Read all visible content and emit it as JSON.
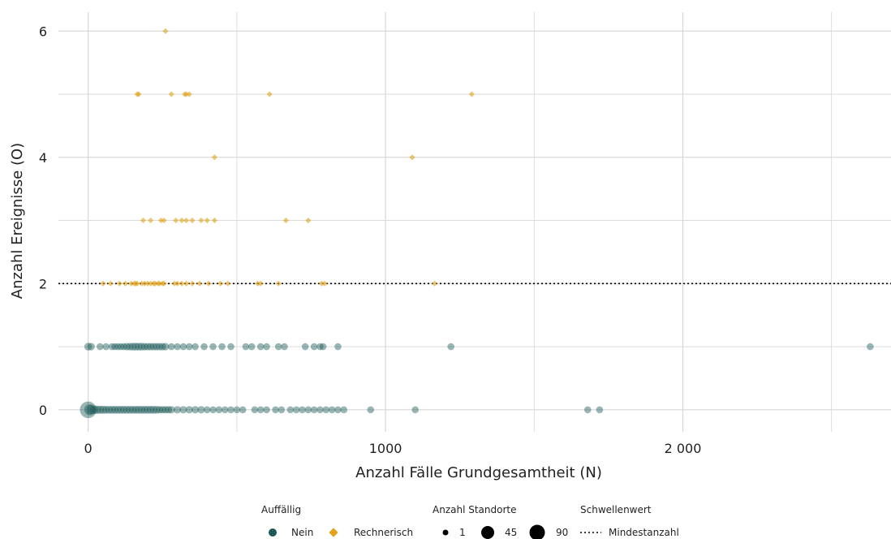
{
  "colors": {
    "nein": "#1d5a58",
    "rechnerisch": "#e0a21a",
    "grid": "#d6d6d6",
    "threshold": "#000000"
  },
  "chart_data": {
    "type": "scatter",
    "xlabel": "Anzahl Fälle Grundgesamtheit (N)",
    "ylabel": "Anzahl Ereignisse (O)",
    "xlim": [
      -100,
      2700
    ],
    "ylim": [
      -0.35,
      6.3
    ],
    "x_ticks": [
      0,
      1000,
      2000
    ],
    "x_tick_labels": [
      "0",
      "1000",
      "2 000"
    ],
    "y_ticks": [
      0,
      2,
      4,
      6
    ],
    "y_tick_labels": [
      "0",
      "2",
      "4",
      "6"
    ],
    "grid": true,
    "threshold": {
      "y": 2,
      "label": "Mindestanzahl"
    },
    "series": [
      {
        "name": "Nein",
        "marker": "circle",
        "points": [
          [
            0,
            0,
            90
          ],
          [
            5,
            0,
            20
          ],
          [
            10,
            0,
            10
          ],
          [
            20,
            0,
            6
          ],
          [
            30,
            0,
            5
          ],
          [
            40,
            0,
            4
          ],
          [
            50,
            0,
            4
          ],
          [
            60,
            0,
            3
          ],
          [
            70,
            0,
            3
          ],
          [
            80,
            0,
            3
          ],
          [
            90,
            0,
            3
          ],
          [
            100,
            0,
            3
          ],
          [
            110,
            0,
            3
          ],
          [
            120,
            0,
            3
          ],
          [
            130,
            0,
            3
          ],
          [
            140,
            0,
            3
          ],
          [
            150,
            0,
            3
          ],
          [
            160,
            0,
            3
          ],
          [
            170,
            0,
            3
          ],
          [
            180,
            0,
            3
          ],
          [
            190,
            0,
            3
          ],
          [
            200,
            0,
            3
          ],
          [
            210,
            0,
            3
          ],
          [
            220,
            0,
            3
          ],
          [
            230,
            0,
            3
          ],
          [
            240,
            0,
            2
          ],
          [
            250,
            0,
            2
          ],
          [
            260,
            0,
            2
          ],
          [
            270,
            0,
            2
          ],
          [
            280,
            0,
            2
          ],
          [
            300,
            0,
            2
          ],
          [
            320,
            0,
            2
          ],
          [
            340,
            0,
            2
          ],
          [
            360,
            0,
            2
          ],
          [
            380,
            0,
            2
          ],
          [
            400,
            0,
            1
          ],
          [
            420,
            0,
            1
          ],
          [
            440,
            0,
            1
          ],
          [
            460,
            0,
            1
          ],
          [
            480,
            0,
            1
          ],
          [
            500,
            0,
            1
          ],
          [
            520,
            0,
            1
          ],
          [
            560,
            0,
            1
          ],
          [
            580,
            0,
            1
          ],
          [
            600,
            0,
            1
          ],
          [
            630,
            0,
            1
          ],
          [
            650,
            0,
            1
          ],
          [
            680,
            0,
            1
          ],
          [
            700,
            0,
            1
          ],
          [
            720,
            0,
            1
          ],
          [
            740,
            0,
            1
          ],
          [
            760,
            0,
            1
          ],
          [
            780,
            0,
            1
          ],
          [
            800,
            0,
            1
          ],
          [
            820,
            0,
            1
          ],
          [
            840,
            0,
            1
          ],
          [
            860,
            0,
            1
          ],
          [
            950,
            0,
            1
          ],
          [
            1100,
            0,
            1
          ],
          [
            1680,
            0,
            1
          ],
          [
            1720,
            0,
            1
          ],
          [
            0,
            1,
            3
          ],
          [
            10,
            1,
            2
          ],
          [
            40,
            1,
            1
          ],
          [
            60,
            1,
            1
          ],
          [
            80,
            1,
            1
          ],
          [
            90,
            1,
            1
          ],
          [
            100,
            1,
            1
          ],
          [
            110,
            1,
            1
          ],
          [
            120,
            1,
            1
          ],
          [
            130,
            1,
            2
          ],
          [
            140,
            1,
            2
          ],
          [
            150,
            1,
            3
          ],
          [
            160,
            1,
            3
          ],
          [
            170,
            1,
            3
          ],
          [
            180,
            1,
            3
          ],
          [
            190,
            1,
            2
          ],
          [
            200,
            1,
            2
          ],
          [
            210,
            1,
            2
          ],
          [
            220,
            1,
            2
          ],
          [
            230,
            1,
            2
          ],
          [
            240,
            1,
            2
          ],
          [
            250,
            1,
            2
          ],
          [
            260,
            1,
            2
          ],
          [
            280,
            1,
            1
          ],
          [
            300,
            1,
            1
          ],
          [
            320,
            1,
            1
          ],
          [
            340,
            1,
            1
          ],
          [
            360,
            1,
            1
          ],
          [
            390,
            1,
            1
          ],
          [
            420,
            1,
            1
          ],
          [
            450,
            1,
            1
          ],
          [
            480,
            1,
            1
          ],
          [
            530,
            1,
            1
          ],
          [
            550,
            1,
            1
          ],
          [
            580,
            1,
            1
          ],
          [
            600,
            1,
            1
          ],
          [
            640,
            1,
            1
          ],
          [
            660,
            1,
            1
          ],
          [
            730,
            1,
            1
          ],
          [
            760,
            1,
            1
          ],
          [
            780,
            1,
            1
          ],
          [
            790,
            1,
            1
          ],
          [
            840,
            1,
            1
          ],
          [
            1220,
            1,
            1
          ],
          [
            2630,
            1,
            1
          ]
        ]
      },
      {
        "name": "Rechnerisch",
        "marker": "diamond",
        "points": [
          [
            260,
            6,
            1
          ],
          [
            165,
            5,
            1
          ],
          [
            170,
            5,
            1
          ],
          [
            280,
            5,
            1
          ],
          [
            325,
            5,
            1
          ],
          [
            330,
            5,
            1
          ],
          [
            340,
            5,
            1
          ],
          [
            610,
            5,
            1
          ],
          [
            1290,
            5,
            1
          ],
          [
            425,
            4,
            1
          ],
          [
            1090,
            4,
            1
          ],
          [
            185,
            3,
            1
          ],
          [
            210,
            3,
            1
          ],
          [
            245,
            3,
            1
          ],
          [
            255,
            3,
            1
          ],
          [
            295,
            3,
            1
          ],
          [
            315,
            3,
            1
          ],
          [
            330,
            3,
            1
          ],
          [
            350,
            3,
            1
          ],
          [
            380,
            3,
            1
          ],
          [
            400,
            3,
            1
          ],
          [
            425,
            3,
            1
          ],
          [
            665,
            3,
            1
          ],
          [
            740,
            3,
            1
          ],
          [
            50,
            2,
            1
          ],
          [
            75,
            2,
            1
          ],
          [
            105,
            2,
            1
          ],
          [
            125,
            2,
            1
          ],
          [
            145,
            2,
            1
          ],
          [
            155,
            2,
            1
          ],
          [
            160,
            2,
            1
          ],
          [
            165,
            2,
            1
          ],
          [
            180,
            2,
            1
          ],
          [
            190,
            2,
            1
          ],
          [
            200,
            2,
            1
          ],
          [
            210,
            2,
            1
          ],
          [
            220,
            2,
            1
          ],
          [
            225,
            2,
            1
          ],
          [
            235,
            2,
            1
          ],
          [
            240,
            2,
            1
          ],
          [
            250,
            2,
            1
          ],
          [
            255,
            2,
            1
          ],
          [
            290,
            2,
            1
          ],
          [
            300,
            2,
            1
          ],
          [
            315,
            2,
            1
          ],
          [
            330,
            2,
            1
          ],
          [
            350,
            2,
            1
          ],
          [
            375,
            2,
            1
          ],
          [
            405,
            2,
            1
          ],
          [
            445,
            2,
            1
          ],
          [
            470,
            2,
            1
          ],
          [
            570,
            2,
            1
          ],
          [
            580,
            2,
            1
          ],
          [
            640,
            2,
            1
          ],
          [
            785,
            2,
            1
          ],
          [
            795,
            2,
            1
          ],
          [
            1165,
            2,
            1
          ]
        ]
      }
    ],
    "legend": {
      "placement": "bottom",
      "groups": [
        {
          "title": "Auffällig",
          "entries": [
            "Nein",
            "Rechnerisch"
          ]
        },
        {
          "title": "Anzahl Standorte",
          "entries": [
            "1",
            "45",
            "90"
          ]
        },
        {
          "title": "Schwellenwert",
          "entries": [
            "Mindestanzahl"
          ]
        }
      ]
    }
  }
}
